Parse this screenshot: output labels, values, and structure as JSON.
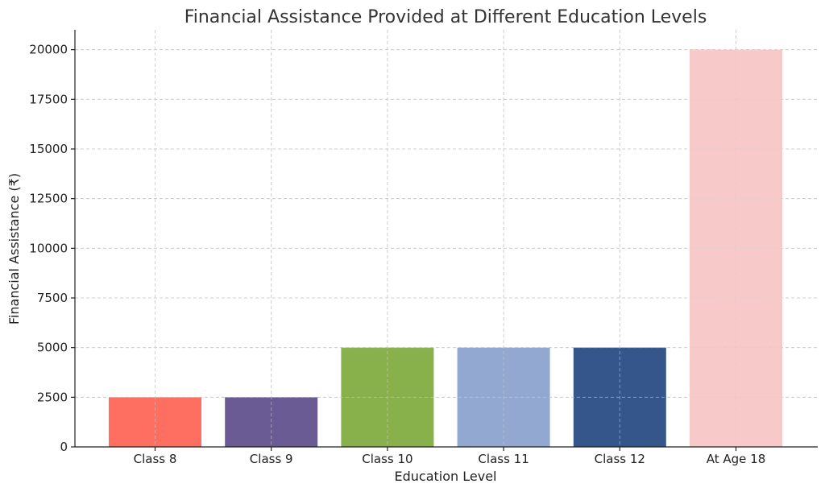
{
  "chart_data": {
    "type": "bar",
    "title": "Financial Assistance Provided at Different Education Levels",
    "xlabel": "Education Level",
    "ylabel": "Financial Assistance (₹)",
    "categories": [
      "Class 8",
      "Class 9",
      "Class 10",
      "Class 11",
      "Class 12",
      "At Age 18"
    ],
    "values": [
      2500,
      2500,
      5000,
      5000,
      5000,
      20000
    ],
    "colors": [
      "#ff6f61",
      "#6b5b95",
      "#88b04b",
      "#92a8d1",
      "#34568b",
      "#f7cac9"
    ],
    "ylim": [
      0,
      21000
    ],
    "yticks": [
      0,
      2500,
      5000,
      7500,
      10000,
      12500,
      15000,
      17500,
      20000
    ],
    "grid": true
  }
}
